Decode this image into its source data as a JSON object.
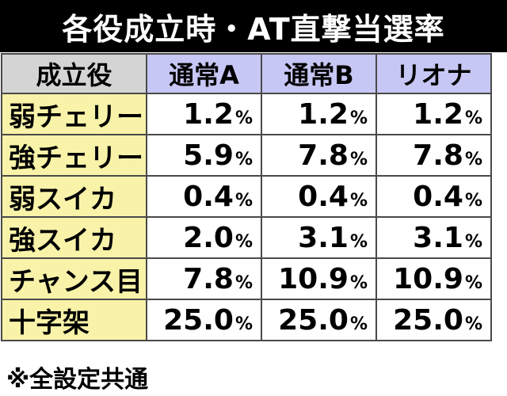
{
  "title": "各役成立時・AT直撃当選率",
  "table": {
    "corner_header": "成立役",
    "columns": [
      "通常A",
      "通常B",
      "リオナ"
    ],
    "unit": "%",
    "rows": [
      {
        "role": "弱チェリー",
        "values": [
          "1.2",
          "1.2",
          "1.2"
        ]
      },
      {
        "role": "強チェリー",
        "values": [
          "5.9",
          "7.8",
          "7.8"
        ]
      },
      {
        "role": "弱スイカ",
        "values": [
          "0.4",
          "0.4",
          "0.4"
        ]
      },
      {
        "role": "強スイカ",
        "values": [
          "2.0",
          "3.1",
          "3.1"
        ]
      },
      {
        "role": "チャンス目",
        "values": [
          "7.8",
          "10.9",
          "10.9"
        ]
      },
      {
        "role": "十字架",
        "values": [
          "25.0",
          "25.0",
          "25.0"
        ]
      }
    ]
  },
  "footnote": "※全設定共通"
}
